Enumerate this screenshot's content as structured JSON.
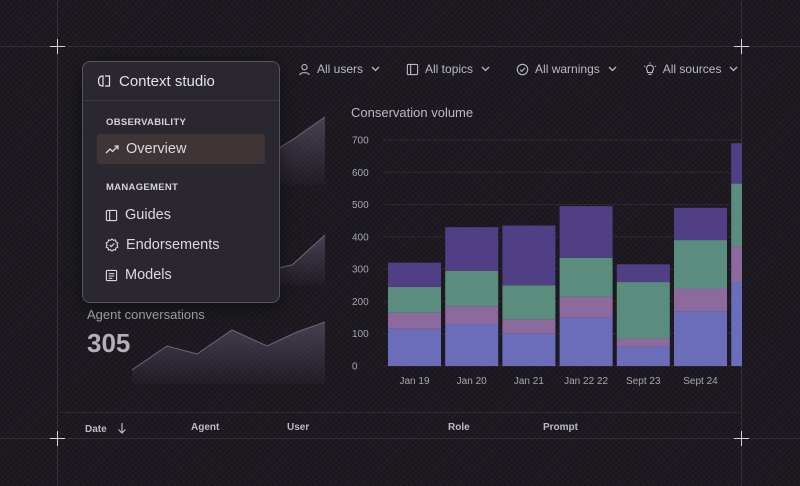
{
  "menu": {
    "title": "Context studio",
    "sections": [
      {
        "label": "OBSERVABILITY",
        "items": [
          {
            "label": "Overview",
            "icon": "trending-up-icon",
            "active": true
          }
        ]
      },
      {
        "label": "MANAGEMENT",
        "items": [
          {
            "label": "Guides",
            "icon": "book-icon"
          },
          {
            "label": "Endorsements",
            "icon": "badge-check-icon"
          },
          {
            "label": "Models",
            "icon": "list-icon"
          }
        ]
      }
    ]
  },
  "filters": [
    {
      "label": "All users",
      "icon": "user-icon"
    },
    {
      "label": "All topics",
      "icon": "book-icon"
    },
    {
      "label": "All warnings",
      "icon": "check-circle-icon"
    },
    {
      "label": "All sources",
      "icon": "lightbulb-icon"
    }
  ],
  "stats": {
    "agent_label": "Agent conversations",
    "agent_value": "305"
  },
  "table": {
    "columns": [
      "Date",
      "Agent",
      "User",
      "Role",
      "Prompt"
    ]
  },
  "chart_data": {
    "type": "bar",
    "stacked": true,
    "title": "Conservation volume",
    "categories": [
      "Jan 19",
      "Jan 20",
      "Jan 21",
      "Jan 22 22",
      "Sept 23",
      "Sept 24",
      ""
    ],
    "ylim": [
      0,
      700
    ],
    "yticks": [
      0,
      100,
      200,
      300,
      400,
      500,
      600,
      700
    ],
    "series": [
      {
        "color": "#6b6dbb",
        "values": [
          115,
          130,
          100,
          150,
          60,
          170,
          260
        ]
      },
      {
        "color": "#8c6a9e",
        "values": [
          50,
          55,
          45,
          65,
          25,
          70,
          110
        ]
      },
      {
        "color": "#5b8d7f",
        "values": [
          80,
          110,
          105,
          120,
          175,
          150,
          195
        ]
      },
      {
        "color": "#503f85",
        "values": [
          75,
          135,
          185,
          160,
          55,
          100,
          125
        ]
      }
    ]
  },
  "colors": {
    "background": "#1d1b21",
    "menu_bg": "#2a2730",
    "active_bg": "#3f3436"
  }
}
